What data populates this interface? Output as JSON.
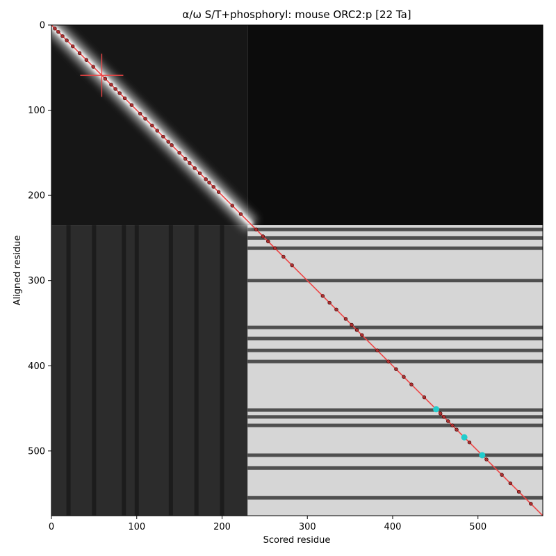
{
  "chart_data": {
    "type": "heatmap",
    "title": "α/ω S/T+phosphoryl: mouse ORC2:p [22 Ta]",
    "xlabel": "Scored residue",
    "ylabel": "Aligned residue",
    "xlim": [
      0,
      576
    ],
    "ylim": [
      576,
      0
    ],
    "xticks": [
      0,
      100,
      200,
      300,
      400,
      500
    ],
    "yticks": [
      0,
      100,
      200,
      300,
      400,
      500
    ],
    "xtick_labels": [
      "0",
      "100",
      "200",
      "300",
      "400",
      "500"
    ],
    "ytick_labels": [
      "0",
      "100",
      "200",
      "300",
      "400",
      "500"
    ],
    "colormap": "grayscale",
    "blocks": [
      {
        "x": [
          0,
          230
        ],
        "y": [
          0,
          235
        ],
        "intensity": "dark with bright diagonal"
      },
      {
        "x": [
          230,
          576
        ],
        "y": [
          0,
          235
        ],
        "intensity": "dark"
      },
      {
        "x": [
          0,
          230
        ],
        "y": [
          235,
          576
        ],
        "intensity": "dark gray"
      },
      {
        "x": [
          230,
          576
        ],
        "y": [
          235,
          576
        ],
        "intensity": "bright"
      }
    ],
    "dark_row_bands": [
      240,
      250,
      262,
      300,
      355,
      368,
      382,
      395,
      452,
      460,
      470,
      505,
      520,
      555
    ],
    "dark_col_bands": [
      20,
      50,
      85,
      100,
      140,
      170,
      200
    ],
    "diagonal_line": {
      "from": [
        0,
        0
      ],
      "to": [
        576,
        576
      ],
      "color": "#ee4444"
    },
    "crosshair": {
      "x": 59,
      "y": 59,
      "color": "#ee4444"
    },
    "markers_dark": [
      4,
      8,
      13,
      18,
      25,
      33,
      41,
      49,
      63,
      70,
      75,
      80,
      86,
      94,
      104,
      110,
      118,
      124,
      131,
      137,
      141,
      150,
      157,
      162,
      168,
      174,
      181,
      185,
      190,
      196,
      212,
      222,
      240,
      248,
      254,
      262,
      272,
      282,
      318,
      326,
      334,
      345,
      352,
      358,
      364,
      382,
      395,
      404,
      413,
      422,
      437,
      456,
      460,
      465,
      470,
      475,
      490,
      510,
      528,
      538,
      548,
      562
    ],
    "markers_cyan": [
      451,
      484,
      505
    ],
    "marker_dark_color": "#b03030",
    "marker_cyan_color": "#22cccc"
  }
}
